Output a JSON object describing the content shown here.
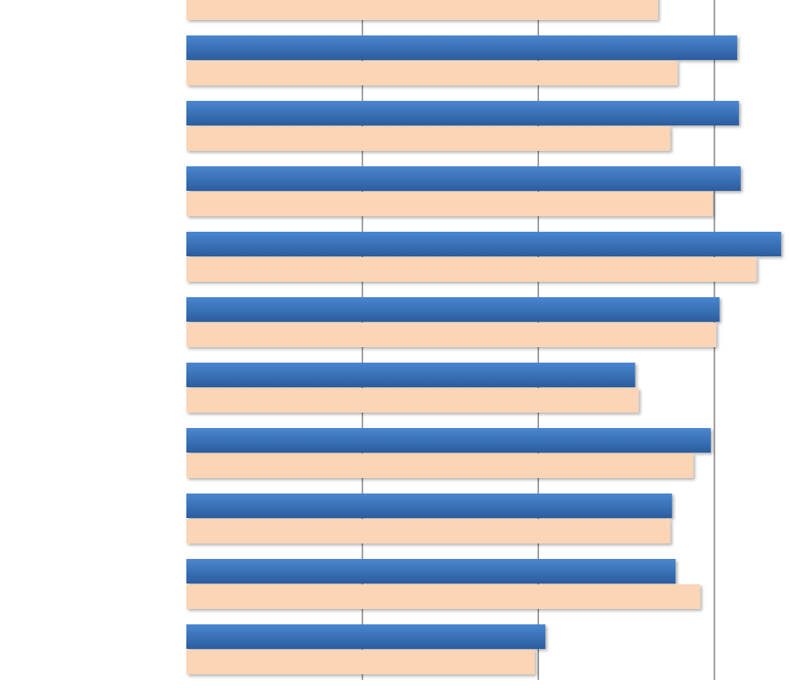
{
  "chart_data": {
    "type": "bar",
    "orientation": "horizontal",
    "categories": [
      null,
      null,
      null,
      null,
      null,
      null,
      null,
      null,
      null,
      null,
      null
    ],
    "series": [
      {
        "color": "#3a70bb",
        "values": [
          null,
          3.13,
          3.14,
          3.15,
          3.38,
          3.03,
          2.55,
          2.98,
          2.76,
          2.78,
          2.04
        ]
      },
      {
        "color": "#fbd5b5",
        "values": [
          2.68,
          2.79,
          2.75,
          2.99,
          3.24,
          3.01,
          2.57,
          2.88,
          2.75,
          2.92,
          1.98
        ]
      }
    ],
    "xlim": [
      0,
      3.43
    ],
    "gridlines": [
      1,
      2,
      3
    ],
    "grid": true
  }
}
